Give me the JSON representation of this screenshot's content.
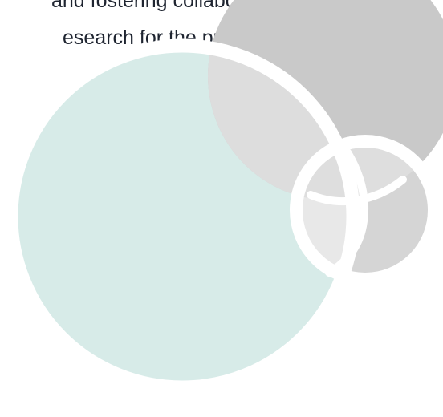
{
  "content": {
    "line_1": "and fostering collaboration, the",
    "line_2": "esearch for the public good."
  },
  "colors": {
    "text": "#1e2430",
    "large_circle": "#d7ebe8",
    "dark_gray": "#c9c9c9",
    "medium_gray": "#dddddd",
    "light_gray": "#e8e8e8",
    "separator": "#ffffff"
  }
}
